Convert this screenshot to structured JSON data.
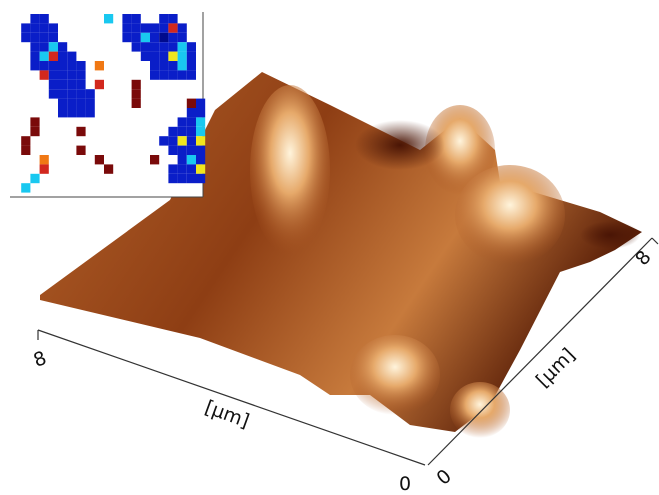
{
  "x_axis": {
    "label": "[μm]",
    "ticks": [
      8,
      0
    ]
  },
  "y_axis": {
    "label": "[μm]",
    "ticks": [
      0,
      8
    ]
  }
}
